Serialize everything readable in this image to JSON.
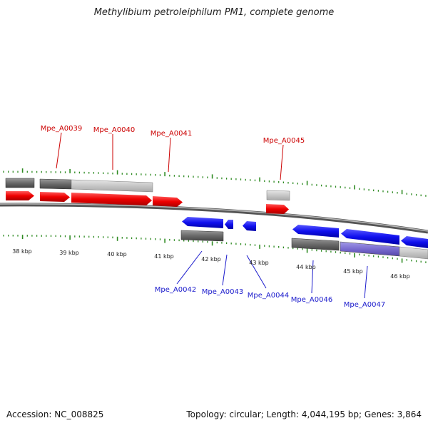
{
  "title": "Methylibium petroleiphilum PM1, complete genome",
  "footer": {
    "accession": "Accession: NC_008825",
    "summary": "Topology: circular; Length: 4,044,195 bp; Genes: 3,864"
  },
  "colors": {
    "forward_gene": "#ee0000",
    "reverse_gene": "#1a1aee",
    "tick": "#2e8b22",
    "backbone": "#6e6e6e",
    "forward_label": "#cc0000",
    "reverse_label": "#1a1acc"
  },
  "scale_labels": [
    "38 kbp",
    "39 kbp",
    "40 kbp",
    "41 kbp",
    "42 kbp",
    "43 kbp",
    "44 kbp",
    "45 kbp",
    "46 kbp"
  ],
  "gene_labels": {
    "forward": [
      "Mpe_A0039",
      "Mpe_A0040",
      "Mpe_A0041",
      "Mpe_A0045"
    ],
    "reverse": [
      "Mpe_A0042",
      "Mpe_A0043",
      "Mpe_A0044",
      "Mpe_A0046",
      "Mpe_A0047"
    ]
  }
}
